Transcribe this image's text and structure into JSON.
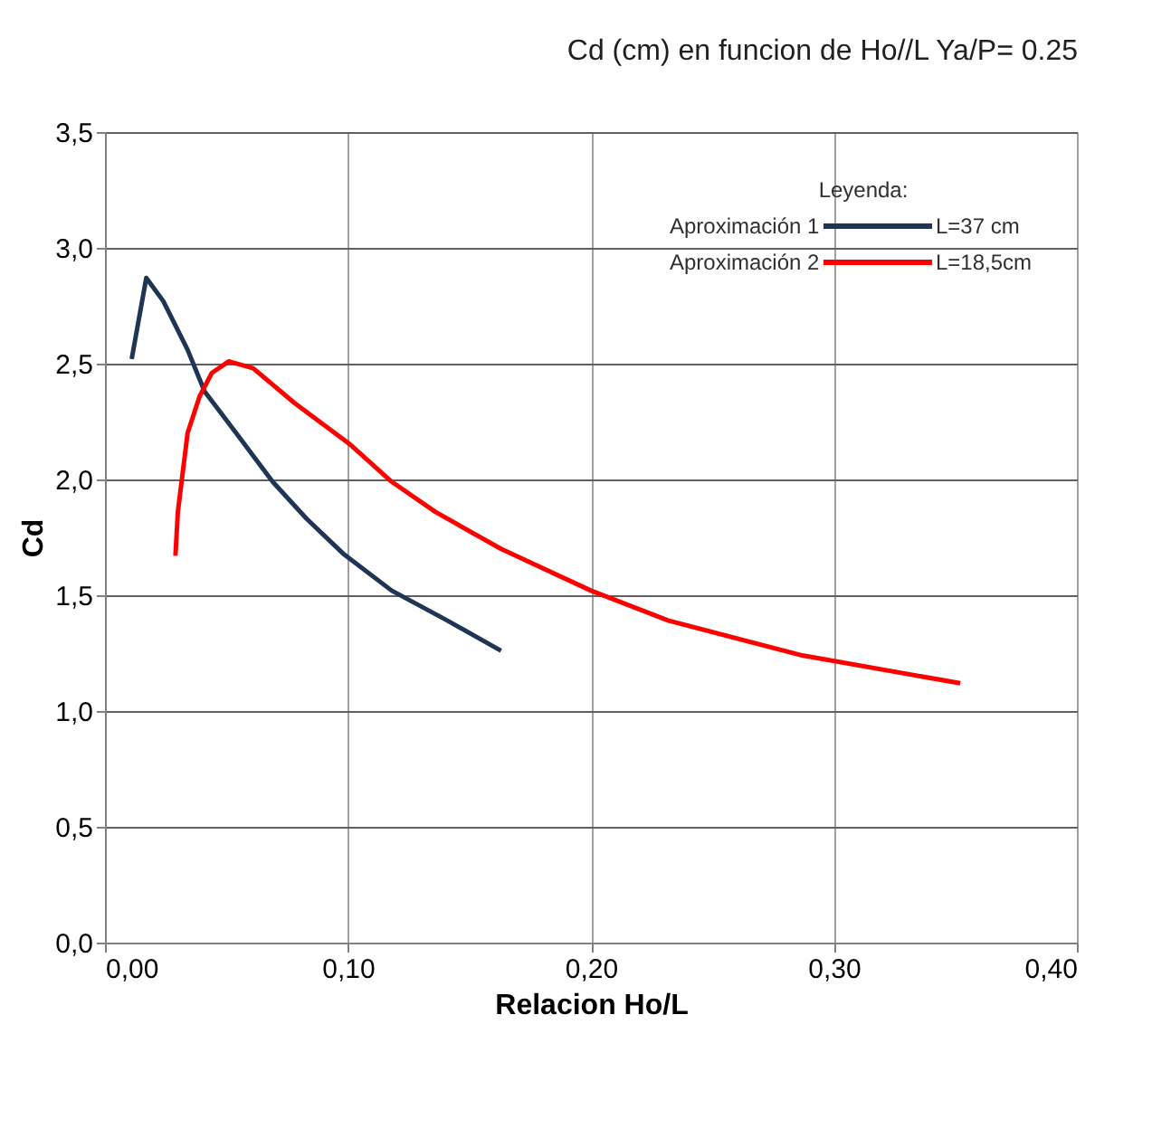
{
  "chart_data": {
    "type": "line",
    "title": "Cd (cm) en funcion de Ho//L    Ya/P= 0.25",
    "xlabel": "Relacion Ho/L",
    "ylabel": "Cd",
    "legend_title": "Leyenda:",
    "legend": "top right",
    "grid": true,
    "line_style": "solid",
    "xlim": [
      0,
      0.4
    ],
    "xticks": [
      {
        "value": 0,
        "label": "0,00"
      },
      {
        "value": 0.1,
        "label": "0,10"
      },
      {
        "value": 0.2,
        "label": "0,20"
      },
      {
        "value": 0.3,
        "label": "0,30"
      },
      {
        "value": 0.4,
        "label": "0,40"
      }
    ],
    "ylim": [
      0,
      3.5
    ],
    "yticks": [
      {
        "value": 0,
        "label": "0,0"
      },
      {
        "value": 0.5,
        "label": "0,5"
      },
      {
        "value": 1,
        "label": "1,0"
      },
      {
        "value": 1.5,
        "label": "1,5"
      },
      {
        "value": 2,
        "label": "2,0"
      },
      {
        "value": 2.5,
        "label": "2,5"
      },
      {
        "value": 3,
        "label": "3,0"
      },
      {
        "value": 3.5,
        "label": "3,5"
      }
    ],
    "annotations": [
      "L=37 cm",
      "L=18,5cm"
    ],
    "series": [
      {
        "name": "Aproximación 1",
        "color": "#1f3556",
        "x": [
          0.011,
          0.017,
          0.024,
          0.034,
          0.041,
          0.054,
          0.069,
          0.083,
          0.098,
          0.118,
          0.141,
          0.163
        ],
        "values": [
          2.52,
          2.87,
          2.77,
          2.56,
          2.38,
          2.2,
          1.99,
          1.83,
          1.68,
          1.52,
          1.39,
          1.26
        ]
      },
      {
        "name": "Aproximación 2",
        "color": "#ff0000",
        "x": [
          0.029,
          0.03,
          0.034,
          0.039,
          0.044,
          0.051,
          0.061,
          0.078,
          0.101,
          0.118,
          0.136,
          0.163,
          0.2,
          0.232,
          0.287,
          0.352
        ],
        "values": [
          1.67,
          1.86,
          2.2,
          2.36,
          2.46,
          2.51,
          2.48,
          2.33,
          2.15,
          1.99,
          1.86,
          1.7,
          1.52,
          1.39,
          1.24,
          1.12
        ]
      }
    ]
  }
}
